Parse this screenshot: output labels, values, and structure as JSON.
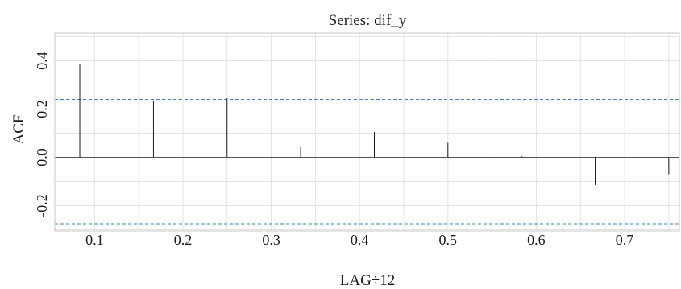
{
  "chart_data": {
    "type": "bar",
    "title": "Series: dif_y",
    "xlabel": "LAG÷12",
    "ylabel": "ACF",
    "xlim": [
      0.055,
      0.762
    ],
    "ylim": [
      -0.305,
      0.515
    ],
    "x_ticks": [
      0.1,
      0.2,
      0.3,
      0.4,
      0.5,
      0.6,
      0.7
    ],
    "x_tick_labels": [
      "0.1",
      "0.2",
      "0.3",
      "0.4",
      "0.5",
      "0.6",
      "0.7"
    ],
    "y_ticks": [
      -0.2,
      0.0,
      0.2,
      0.4
    ],
    "y_tick_labels": [
      "-0.2",
      "0.0",
      "0.2",
      "0.4"
    ],
    "grid": true,
    "confidence_bounds": {
      "upper": 0.24,
      "lower": -0.275,
      "color": "#3b7fd1",
      "style": "dashed"
    },
    "x": [
      0.0833,
      0.1667,
      0.25,
      0.3333,
      0.4167,
      0.5,
      0.5833,
      0.6667,
      0.75
    ],
    "values": [
      0.385,
      0.235,
      0.245,
      0.045,
      0.105,
      0.06,
      0.005,
      -0.115,
      -0.07
    ],
    "bar_color": "#1a1a1a"
  }
}
